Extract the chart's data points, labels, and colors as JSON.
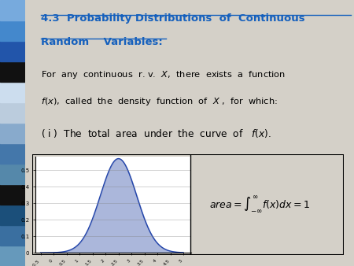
{
  "title_line1": "4.3  Probability Distributions  of  Continuous",
  "title_line2": "Random    Variables:",
  "title_color": "#1560BD",
  "body1": "For  any  continuous  r. v.  $X$,  there  exists  a  function",
  "body2": "$f(x)$,  called  the  density  function  of  $X$ ,  for  which:",
  "body3": "( i )  The  total  area  under  the  curve  of   $f(x)$.",
  "curve_fill_color": "#8899CC",
  "curve_line_color": "#2244AA",
  "curve_fill_alpha": 0.7,
  "sidebar_colors": [
    "#6699BB",
    "#3A6FA0",
    "#1B4F7A",
    "#111111",
    "#5588AA",
    "#4477AA",
    "#88AACC",
    "#BBCCDD",
    "#CCDDEE",
    "#111111",
    "#2255AA",
    "#4488CC",
    "#77AADD"
  ],
  "mu": 2.5,
  "sigma": 0.7,
  "yticks": [
    0,
    0.1,
    0.2,
    0.3,
    0.4,
    0.5
  ],
  "ytick_labels": [
    "0",
    "0.1",
    "0.2",
    "0.3",
    "0.4",
    "0.5"
  ],
  "xtick_values": [
    -0.5,
    0,
    0.5,
    1,
    1.5,
    2,
    2.5,
    3,
    3.5,
    4,
    4.5,
    5
  ],
  "xtick_labels": [
    "-0.5",
    "0",
    "0.5",
    "1",
    "1.5",
    "2",
    "2.5",
    "3",
    "3.5",
    "4",
    "4.5",
    "5"
  ]
}
